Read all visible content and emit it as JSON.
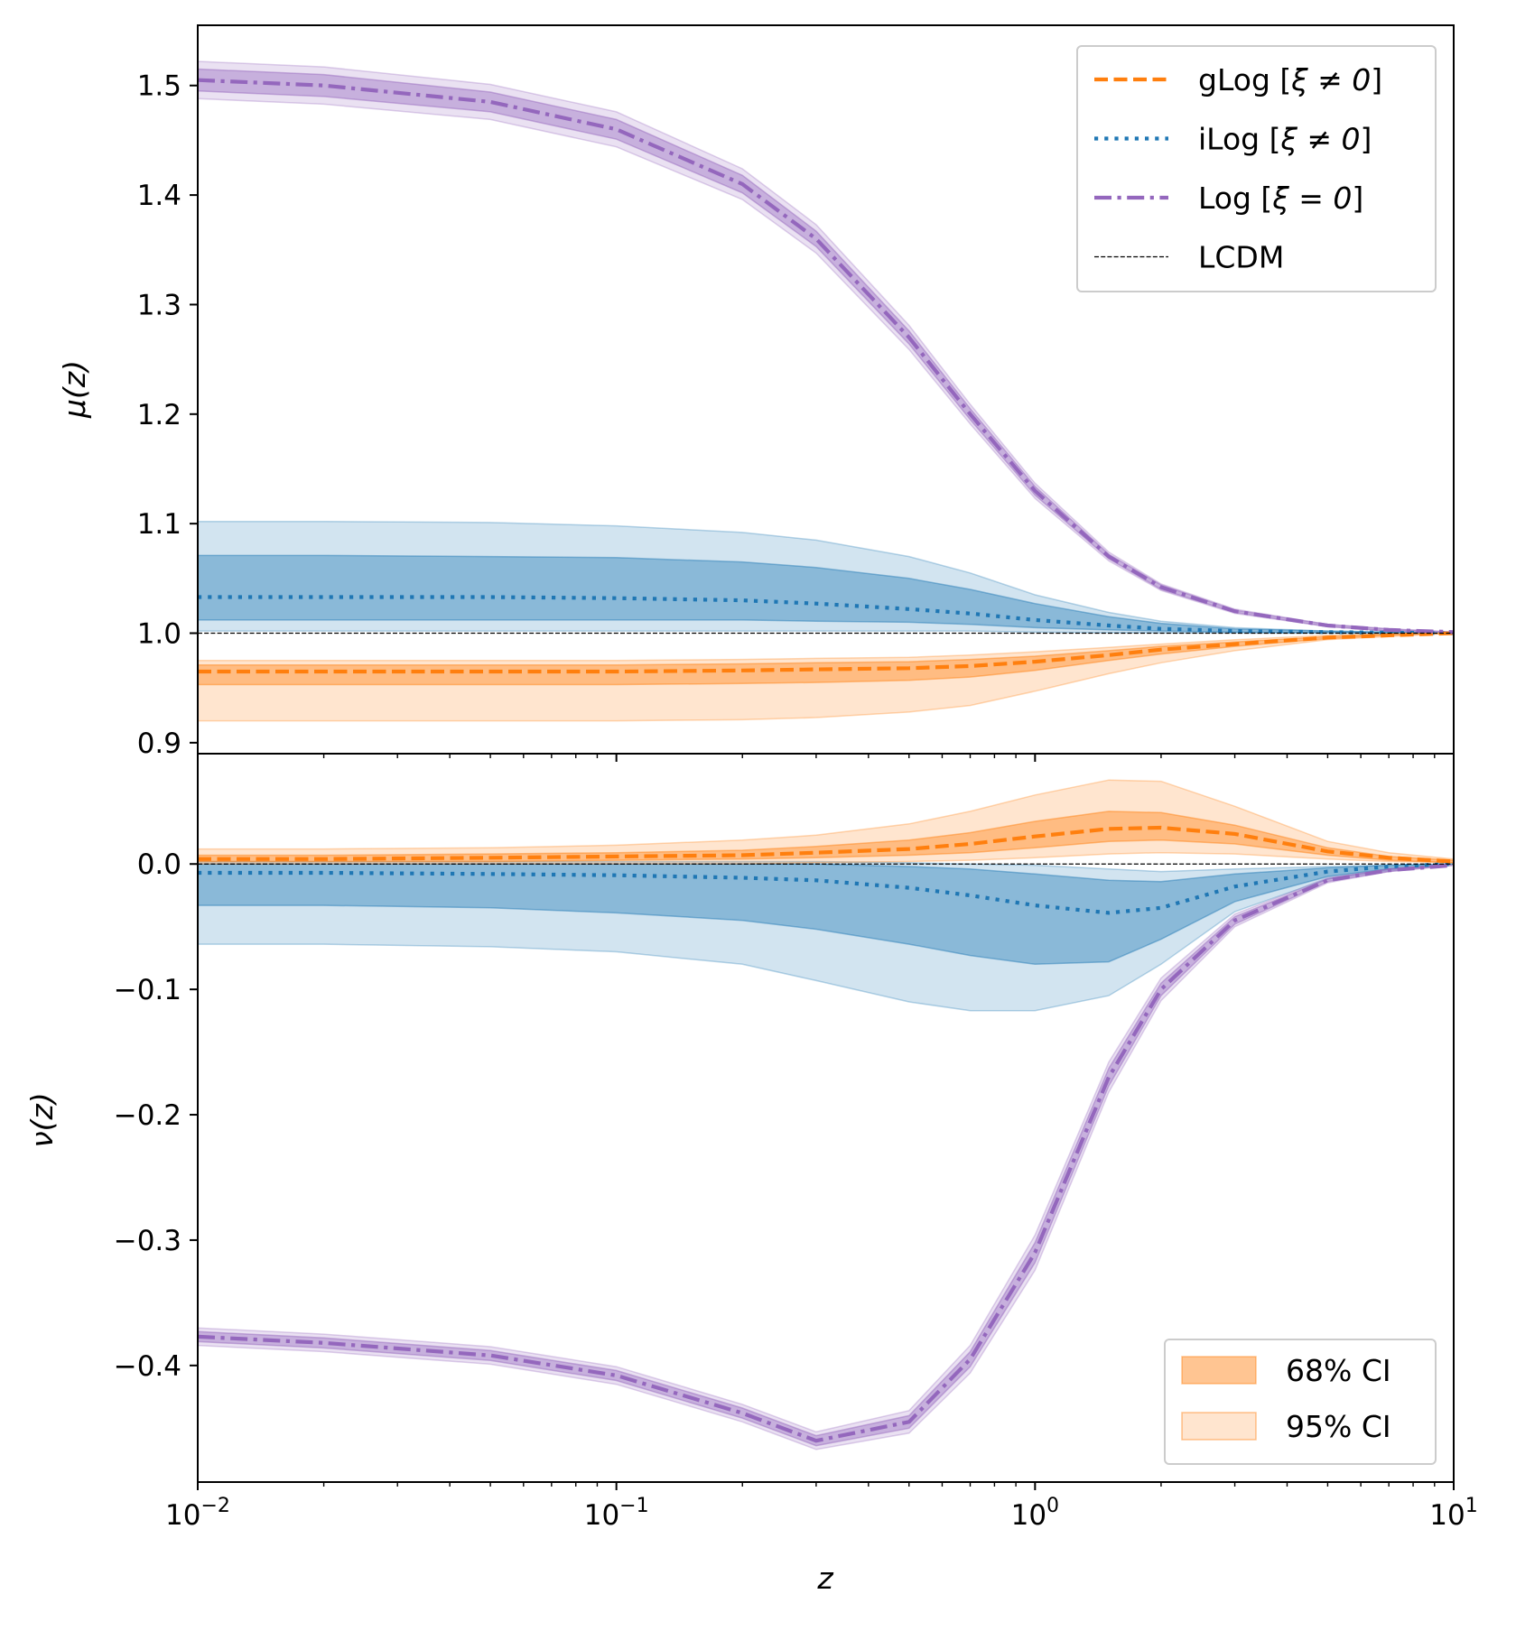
{
  "colors": {
    "glog": "#ff7f0e",
    "ilog": "#1f77b4",
    "log": "#9467bd",
    "lcdm": "#000000"
  },
  "legends": {
    "models": {
      "placement": "upper right",
      "entries": [
        {
          "key": "glog",
          "style": "dashed",
          "label_main": "gLog [",
          "label_symbol": "ξ ≠ 0",
          "label_end": "]"
        },
        {
          "key": "ilog",
          "style": "dotted",
          "label_main": "iLog [",
          "label_symbol": "ξ ≠ 0",
          "label_end": "]"
        },
        {
          "key": "log",
          "style": "dashdot",
          "label_main": "Log [",
          "label_symbol": "ξ = 0",
          "label_end": "]"
        },
        {
          "key": "lcdm",
          "style": "thin-dashed",
          "label_main": "LCDM",
          "label_symbol": "",
          "label_end": ""
        }
      ]
    },
    "ci": {
      "placement": "lower right",
      "entries": [
        {
          "opacity": "0.45",
          "label": "68% CI"
        },
        {
          "opacity": "0.2",
          "label": "95% CI"
        }
      ]
    }
  },
  "chart_data": [
    {
      "type": "line",
      "panel": "top",
      "ylabel": "μ(z)",
      "xscale": "log",
      "xlim": [
        0.01,
        10
      ],
      "ylim": [
        0.89,
        1.555
      ],
      "yticks": [
        {
          "value": 0.9,
          "label": "0.9"
        },
        {
          "value": 1.0,
          "label": "1.0"
        },
        {
          "value": 1.1,
          "label": "1.1"
        },
        {
          "value": 1.2,
          "label": "1.2"
        },
        {
          "value": 1.3,
          "label": "1.3"
        },
        {
          "value": 1.4,
          "label": "1.4"
        },
        {
          "value": 1.5,
          "label": "1.5"
        }
      ],
      "z": [
        0.01,
        0.02,
        0.05,
        0.1,
        0.2,
        0.3,
        0.5,
        0.7,
        1.0,
        1.5,
        2.0,
        3.0,
        5.0,
        7.0,
        10.0
      ],
      "series": [
        {
          "key": "ilog",
          "name": "iLog [ξ ≠ 0]",
          "style": "dotted",
          "median": [
            1.033,
            1.033,
            1.033,
            1.032,
            1.03,
            1.027,
            1.022,
            1.018,
            1.012,
            1.007,
            1.004,
            1.002,
            1.001,
            1.0005,
            1.0
          ],
          "ci68_low": [
            1.012,
            1.012,
            1.012,
            1.012,
            1.012,
            1.011,
            1.01,
            1.008,
            1.005,
            1.003,
            1.002,
            1.001,
            1.0005,
            1.0002,
            1.0
          ],
          "ci68_high": [
            1.071,
            1.071,
            1.07,
            1.069,
            1.065,
            1.06,
            1.05,
            1.04,
            1.027,
            1.015,
            1.009,
            1.004,
            1.002,
            1.001,
            1.0
          ],
          "ci95_low": [
            1.002,
            1.002,
            1.002,
            1.002,
            1.002,
            1.002,
            1.002,
            1.002,
            1.001,
            1.0005,
            1.0003,
            1.0002,
            1.0001,
            1.0,
            1.0
          ],
          "ci95_high": [
            1.102,
            1.102,
            1.101,
            1.098,
            1.092,
            1.085,
            1.07,
            1.055,
            1.035,
            1.019,
            1.011,
            1.005,
            1.002,
            1.001,
            1.0
          ]
        },
        {
          "key": "glog",
          "name": "gLog [ξ ≠ 0]",
          "style": "dashed",
          "median": [
            0.965,
            0.965,
            0.965,
            0.965,
            0.966,
            0.967,
            0.968,
            0.97,
            0.974,
            0.98,
            0.985,
            0.99,
            0.996,
            0.998,
            1.0
          ],
          "ci68_low": [
            0.953,
            0.953,
            0.953,
            0.953,
            0.954,
            0.955,
            0.957,
            0.96,
            0.966,
            0.975,
            0.981,
            0.988,
            0.995,
            0.998,
            1.0
          ],
          "ci68_high": [
            0.971,
            0.971,
            0.971,
            0.971,
            0.972,
            0.973,
            0.974,
            0.976,
            0.979,
            0.984,
            0.988,
            0.992,
            0.997,
            0.999,
            1.0
          ],
          "ci95_low": [
            0.92,
            0.92,
            0.92,
            0.92,
            0.921,
            0.923,
            0.928,
            0.934,
            0.947,
            0.963,
            0.973,
            0.984,
            0.994,
            0.997,
            1.0
          ],
          "ci95_high": [
            0.975,
            0.975,
            0.975,
            0.975,
            0.976,
            0.977,
            0.978,
            0.98,
            0.983,
            0.987,
            0.99,
            0.994,
            0.998,
            0.999,
            1.0
          ]
        },
        {
          "key": "log",
          "name": "Log [ξ = 0]",
          "style": "dashdot",
          "median": [
            1.505,
            1.5,
            1.485,
            1.46,
            1.41,
            1.36,
            1.27,
            1.2,
            1.13,
            1.07,
            1.042,
            1.02,
            1.007,
            1.003,
            1.001
          ],
          "ci68_low": [
            1.495,
            1.49,
            1.476,
            1.451,
            1.402,
            1.353,
            1.264,
            1.195,
            1.126,
            1.068,
            1.04,
            1.019,
            1.006,
            1.002,
            1.001
          ],
          "ci68_high": [
            1.515,
            1.51,
            1.494,
            1.469,
            1.418,
            1.367,
            1.276,
            1.205,
            1.134,
            1.072,
            1.044,
            1.021,
            1.008,
            1.004,
            1.001
          ],
          "ci95_low": [
            1.488,
            1.483,
            1.469,
            1.444,
            1.396,
            1.347,
            1.259,
            1.191,
            1.123,
            1.066,
            1.039,
            1.018,
            1.006,
            1.002,
            1.001
          ],
          "ci95_high": [
            1.522,
            1.517,
            1.501,
            1.476,
            1.424,
            1.373,
            1.281,
            1.209,
            1.137,
            1.074,
            1.045,
            1.022,
            1.008,
            1.004,
            1.001
          ]
        },
        {
          "key": "lcdm",
          "name": "LCDM",
          "style": "thin-dashed",
          "constant": 1.0
        }
      ]
    },
    {
      "type": "line",
      "panel": "bottom",
      "ylabel": "ν(z)",
      "xlabel": "z",
      "xscale": "log",
      "xlim": [
        0.01,
        10
      ],
      "ylim": [
        -0.493,
        0.088
      ],
      "yticks": [
        {
          "value": -0.4,
          "label": "−0.4"
        },
        {
          "value": -0.3,
          "label": "−0.3"
        },
        {
          "value": -0.2,
          "label": "−0.2"
        },
        {
          "value": -0.1,
          "label": "−0.1"
        },
        {
          "value": 0.0,
          "label": "0.0"
        }
      ],
      "xticks": [
        {
          "value": 0.01,
          "base": "10",
          "exp": "−2"
        },
        {
          "value": 0.1,
          "base": "10",
          "exp": "−1"
        },
        {
          "value": 1,
          "base": "10",
          "exp": "0"
        },
        {
          "value": 10,
          "base": "10",
          "exp": "1"
        }
      ],
      "z": [
        0.01,
        0.02,
        0.05,
        0.1,
        0.2,
        0.3,
        0.5,
        0.7,
        1.0,
        1.5,
        2.0,
        3.0,
        5.0,
        7.0,
        10.0
      ],
      "series": [
        {
          "key": "ilog",
          "name": "iLog [ξ ≠ 0]",
          "style": "dotted",
          "median": [
            -0.007,
            -0.007,
            -0.008,
            -0.009,
            -0.011,
            -0.013,
            -0.019,
            -0.025,
            -0.033,
            -0.039,
            -0.035,
            -0.018,
            -0.006,
            -0.002,
            0.0
          ],
          "ci68_low": [
            -0.033,
            -0.033,
            -0.035,
            -0.039,
            -0.045,
            -0.052,
            -0.064,
            -0.073,
            -0.08,
            -0.078,
            -0.06,
            -0.03,
            -0.01,
            -0.004,
            0.0
          ],
          "ci68_high": [
            0.0,
            0.0,
            0.0,
            0.0,
            0.0,
            0.0,
            -0.002,
            -0.004,
            -0.008,
            -0.013,
            -0.014,
            -0.008,
            -0.003,
            -0.001,
            0.0
          ],
          "ci95_low": [
            -0.064,
            -0.064,
            -0.066,
            -0.07,
            -0.08,
            -0.093,
            -0.11,
            -0.117,
            -0.117,
            -0.105,
            -0.08,
            -0.038,
            -0.012,
            -0.005,
            0.0
          ],
          "ci95_high": [
            0.002,
            0.002,
            0.002,
            0.002,
            0.002,
            0.002,
            0.001,
            0.0,
            -0.001,
            -0.004,
            -0.006,
            -0.004,
            -0.002,
            -0.001,
            0.0
          ]
        },
        {
          "key": "glog",
          "name": "gLog [ξ ≠ 0]",
          "style": "dashed",
          "median": [
            0.004,
            0.004,
            0.005,
            0.006,
            0.007,
            0.009,
            0.012,
            0.016,
            0.022,
            0.028,
            0.029,
            0.024,
            0.01,
            0.005,
            0.002
          ],
          "ci68_low": [
            0.002,
            0.002,
            0.002,
            0.003,
            0.004,
            0.005,
            0.007,
            0.009,
            0.013,
            0.018,
            0.019,
            0.016,
            0.007,
            0.003,
            0.001
          ],
          "ci68_high": [
            0.007,
            0.007,
            0.008,
            0.009,
            0.011,
            0.014,
            0.019,
            0.025,
            0.034,
            0.042,
            0.041,
            0.031,
            0.013,
            0.006,
            0.003
          ],
          "ci95_low": [
            0.0,
            0.0,
            0.0,
            0.0,
            0.0,
            0.001,
            0.002,
            0.003,
            0.005,
            0.008,
            0.009,
            0.008,
            0.004,
            0.002,
            0.001
          ],
          "ci95_high": [
            0.012,
            0.012,
            0.013,
            0.015,
            0.019,
            0.023,
            0.032,
            0.042,
            0.055,
            0.067,
            0.066,
            0.046,
            0.018,
            0.009,
            0.004
          ]
        },
        {
          "key": "log",
          "name": "Log [ξ = 0]",
          "style": "dashdot",
          "median": [
            -0.377,
            -0.382,
            -0.392,
            -0.408,
            -0.438,
            -0.46,
            -0.445,
            -0.395,
            -0.31,
            -0.17,
            -0.1,
            -0.045,
            -0.013,
            -0.005,
            -0.001
          ],
          "ci68_low": [
            -0.381,
            -0.386,
            -0.396,
            -0.412,
            -0.442,
            -0.464,
            -0.45,
            -0.401,
            -0.318,
            -0.177,
            -0.105,
            -0.048,
            -0.014,
            -0.006,
            -0.001
          ],
          "ci68_high": [
            -0.373,
            -0.378,
            -0.388,
            -0.404,
            -0.434,
            -0.456,
            -0.44,
            -0.389,
            -0.302,
            -0.163,
            -0.095,
            -0.042,
            -0.012,
            -0.004,
            -0.001
          ],
          "ci95_low": [
            -0.384,
            -0.389,
            -0.399,
            -0.415,
            -0.445,
            -0.467,
            -0.454,
            -0.406,
            -0.324,
            -0.182,
            -0.109,
            -0.05,
            -0.015,
            -0.006,
            -0.001
          ],
          "ci95_high": [
            -0.37,
            -0.375,
            -0.385,
            -0.401,
            -0.431,
            -0.453,
            -0.436,
            -0.384,
            -0.296,
            -0.158,
            -0.091,
            -0.04,
            -0.011,
            -0.004,
            -0.001
          ]
        },
        {
          "key": "lcdm",
          "name": "LCDM",
          "style": "thin-dashed",
          "constant": 0.0
        }
      ]
    }
  ]
}
